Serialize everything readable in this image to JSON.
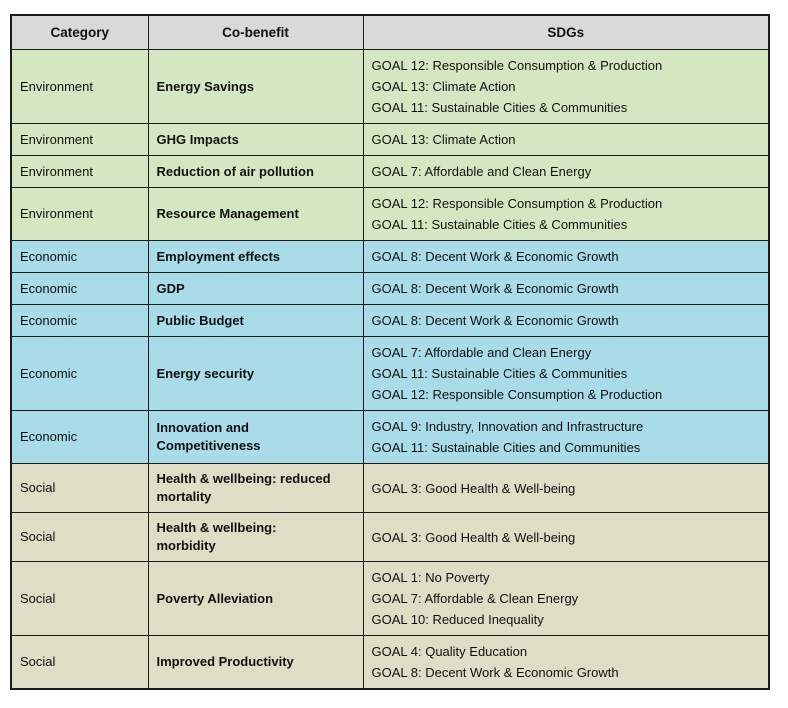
{
  "table": {
    "columns": [
      "Category",
      "Co-benefit",
      "SDGs"
    ],
    "colors": {
      "header_bg": "#d9d9d9",
      "environment_bg": "#d5e7c2",
      "economic_bg": "#a9dbe8",
      "social_bg": "#deddc6",
      "border": "#1c1c1c"
    },
    "rows": [
      {
        "category": "Environment",
        "group": "environment",
        "cobenefit": "Energy Savings",
        "sdgs": [
          "GOAL 12: Responsible Consumption & Production",
          "GOAL 13: Climate Action",
          "GOAL 11: Sustainable Cities & Communities"
        ]
      },
      {
        "category": "Environment",
        "group": "environment",
        "cobenefit": "GHG Impacts",
        "sdgs": [
          "GOAL 13: Climate Action"
        ]
      },
      {
        "category": "Environment",
        "group": "environment",
        "cobenefit": "Reduction of air pollution",
        "sdgs": [
          "GOAL 7: Affordable and Clean Energy"
        ]
      },
      {
        "category": "Environment",
        "group": "environment",
        "cobenefit": "Resource Management",
        "sdgs": [
          "GOAL 12: Responsible Consumption & Production",
          "GOAL 11: Sustainable Cities & Communities"
        ]
      },
      {
        "category": "Economic",
        "group": "economic",
        "cobenefit": "Employment effects",
        "sdgs": [
          "GOAL 8: Decent Work & Economic Growth"
        ]
      },
      {
        "category": "Economic",
        "group": "economic",
        "cobenefit": "GDP",
        "sdgs": [
          "GOAL 8: Decent Work & Economic Growth"
        ]
      },
      {
        "category": "Economic",
        "group": "economic",
        "cobenefit": "Public Budget",
        "sdgs": [
          "GOAL 8: Decent Work & Economic Growth"
        ]
      },
      {
        "category": "Economic",
        "group": "economic",
        "cobenefit": "Energy security",
        "sdgs": [
          "GOAL 7: Affordable and Clean Energy",
          "GOAL 11: Sustainable Cities & Communities",
          "GOAL 12: Responsible Consumption & Production"
        ]
      },
      {
        "category": "Economic",
        "group": "economic",
        "cobenefit": "Innovation and Competitiveness",
        "sdgs": [
          "GOAL 9: Industry, Innovation and Infrastructure",
          "GOAL 11: Sustainable Cities and Communities"
        ]
      },
      {
        "category": "Social",
        "group": "social",
        "cobenefit": "Health & wellbeing: reduced mortality",
        "sdgs": [
          "GOAL 3: Good Health & Well-being"
        ]
      },
      {
        "category": "Social",
        "group": "social",
        "cobenefit": "Health & wellbeing: morbidity",
        "sdgs": [
          "GOAL 3: Good Health & Well-being"
        ]
      },
      {
        "category": "Social",
        "group": "social",
        "cobenefit": "Poverty Alleviation",
        "sdgs": [
          "GOAL 1: No Poverty",
          "GOAL 7: Affordable & Clean Energy",
          "GOAL 10: Reduced Inequality"
        ]
      },
      {
        "category": "Social",
        "group": "social",
        "cobenefit": "Improved Productivity",
        "sdgs": [
          "GOAL 4: Quality Education",
          "GOAL 8: Decent Work & Economic Growth"
        ]
      }
    ]
  }
}
